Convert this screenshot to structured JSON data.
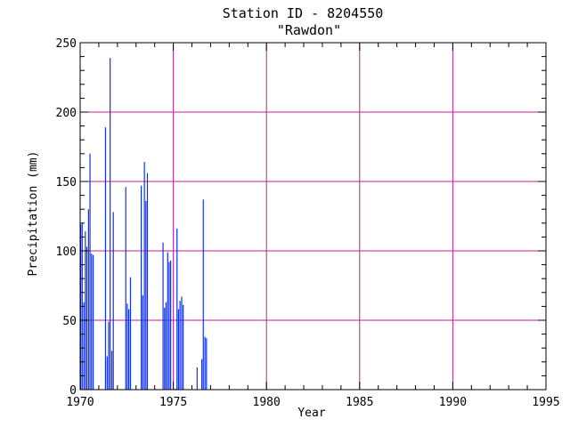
{
  "chart_data": {
    "type": "bar",
    "title": "Station ID - 8204550",
    "subtitle": "\"Rawdon\"",
    "xlabel": "Year",
    "ylabel": "Precipitation (mm)",
    "xlim": [
      1970,
      1995
    ],
    "ylim": [
      0,
      250
    ],
    "x_ticks": [
      1970,
      1975,
      1980,
      1985,
      1990,
      1995
    ],
    "y_ticks": [
      0,
      50,
      100,
      150,
      200,
      250
    ],
    "grid": true,
    "colors": {
      "bars": "#1030ee",
      "grid": "#c0208a",
      "axes": "#000000"
    },
    "series": [
      {
        "x": [
          1970.0,
          1970.08,
          1970.17,
          1970.25,
          1970.33,
          1970.42,
          1970.5,
          1970.58,
          1970.67,
          1971.33,
          1971.42,
          1971.5,
          1971.58,
          1971.67,
          1971.75,
          1972.42,
          1972.5,
          1972.58,
          1972.67,
          1973.25,
          1973.33,
          1973.42,
          1973.5,
          1973.58,
          1974.42,
          1974.5,
          1974.58,
          1974.67,
          1974.75,
          1974.83,
          1975.08,
          1975.17,
          1975.25,
          1975.33,
          1975.42,
          1975.5,
          1976.25,
          1976.5,
          1976.58,
          1976.67,
          1976.75
        ],
        "values": [
          119,
          120,
          63,
          114,
          103,
          130,
          170,
          98,
          97,
          189,
          24,
          49,
          239,
          28,
          128,
          146,
          62,
          58,
          81,
          147,
          68,
          164,
          136,
          156,
          106,
          59,
          63,
          99,
          92,
          93,
          0,
          116,
          58,
          64,
          67,
          61,
          16,
          22,
          137,
          38,
          37
        ]
      }
    ]
  }
}
